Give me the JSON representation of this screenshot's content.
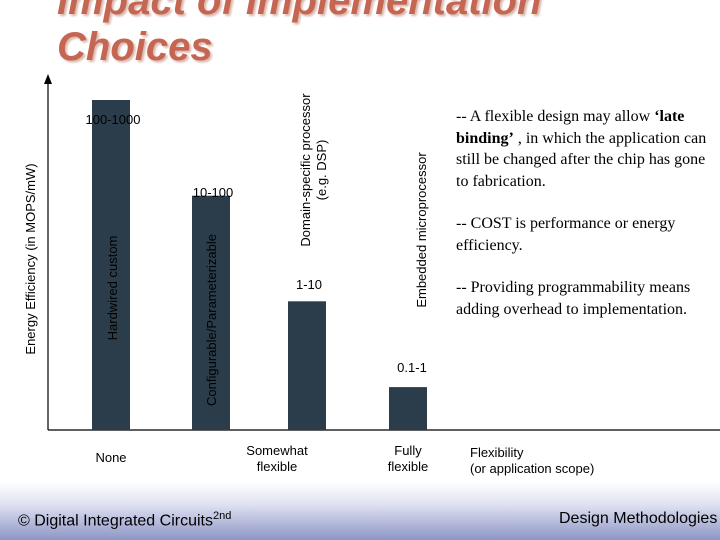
{
  "slide": {
    "title_line1": "Impact of Implementation",
    "title_line2": "Choices",
    "notes": [
      {
        "before": "-- A flexible design may allow ",
        "bold": "‘late binding’",
        "after": " , in which the application can still be changed after the chip has gone to fabrication."
      },
      {
        "before": "-- COST is performance or energy efficiency.",
        "bold": "",
        "after": ""
      },
      {
        "before": "-- Providing programmability means adding overhead to implementation.",
        "bold": "",
        "after": ""
      }
    ],
    "footer": {
      "left_text": "© Digital Integrated Circuits",
      "left_sup": "2nd",
      "right_text": "Design Methodologies"
    }
  },
  "chart_data": {
    "type": "bar",
    "ylabel": "Energy Efficiency (in MOPS/mW)",
    "xlabel": "Flexibility\n(or application scope)",
    "bar_color": "#2b3d4b",
    "categories": [
      {
        "label": "Hardwired custom",
        "value_label": "100-1000",
        "height_rank": 5,
        "x_label": "None"
      },
      {
        "label": "Configurable/Parameterizable",
        "value_label": "10-100",
        "height_rank": 3.55,
        "x_label": ""
      },
      {
        "label": "Domain-specific processor\n(e.g. DSP)",
        "value_label": "1-10",
        "height_rank": 1.95,
        "x_label": "Somewhat\nflexible"
      },
      {
        "label": "Embedded microprocessor",
        "value_label": "0.1-1",
        "height_rank": 0.65,
        "x_label": "Fully\nflexible"
      }
    ]
  }
}
